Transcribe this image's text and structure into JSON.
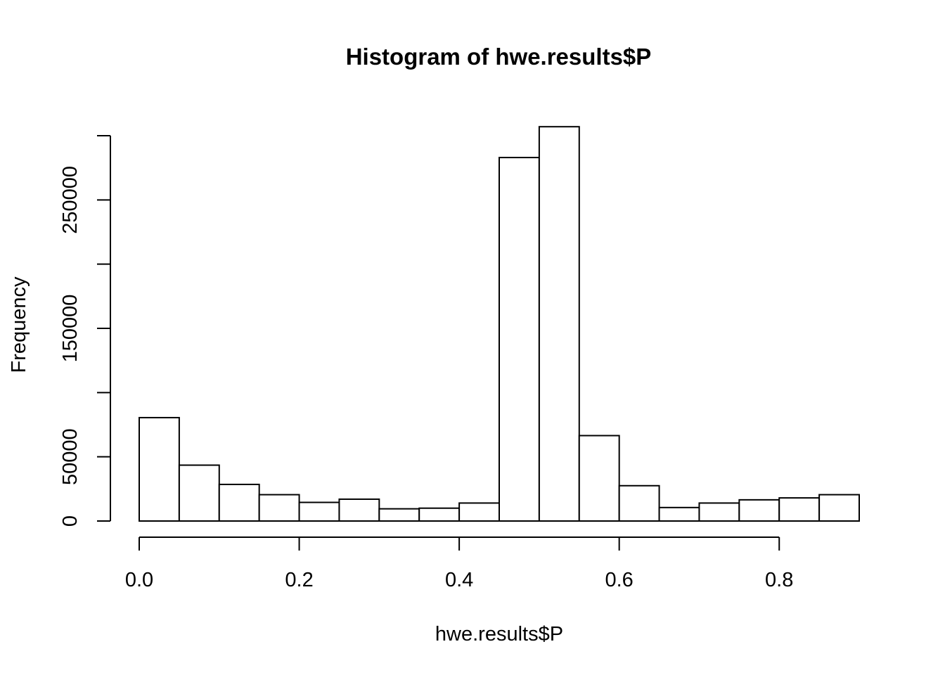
{
  "chart_data": {
    "type": "bar",
    "title": "Histogram of hwe.results$P",
    "xlabel": "hwe.results$P",
    "ylabel": "Frequency",
    "xlim": [
      0.0,
      0.9
    ],
    "ylim": [
      0,
      300000
    ],
    "x_ticks": [
      0.0,
      0.2,
      0.4,
      0.6,
      0.8
    ],
    "x_tick_labels": [
      "0.0",
      "0.2",
      "0.4",
      "0.6",
      "0.8"
    ],
    "y_ticks": [
      0,
      50000,
      100000,
      150000,
      200000,
      250000,
      300000
    ],
    "y_tick_labels": [
      "0",
      "50000",
      "",
      "150000",
      "",
      "250000",
      ""
    ],
    "bin_width": 0.05,
    "bins": [
      {
        "start": 0.0,
        "end": 0.05,
        "value": 80500
      },
      {
        "start": 0.05,
        "end": 0.1,
        "value": 43500
      },
      {
        "start": 0.1,
        "end": 0.15,
        "value": 28500
      },
      {
        "start": 0.15,
        "end": 0.2,
        "value": 20500
      },
      {
        "start": 0.2,
        "end": 0.25,
        "value": 14500
      },
      {
        "start": 0.25,
        "end": 0.3,
        "value": 17000
      },
      {
        "start": 0.3,
        "end": 0.35,
        "value": 9500
      },
      {
        "start": 0.35,
        "end": 0.4,
        "value": 10000
      },
      {
        "start": 0.4,
        "end": 0.45,
        "value": 14000
      },
      {
        "start": 0.45,
        "end": 0.5,
        "value": 283000
      },
      {
        "start": 0.5,
        "end": 0.55,
        "value": 307000
      },
      {
        "start": 0.55,
        "end": 0.6,
        "value": 66500
      },
      {
        "start": 0.6,
        "end": 0.65,
        "value": 27500
      },
      {
        "start": 0.65,
        "end": 0.7,
        "value": 10500
      },
      {
        "start": 0.7,
        "end": 0.75,
        "value": 14000
      },
      {
        "start": 0.75,
        "end": 0.8,
        "value": 16500
      },
      {
        "start": 0.8,
        "end": 0.85,
        "value": 18000
      },
      {
        "start": 0.85,
        "end": 0.9,
        "value": 20500
      }
    ],
    "grid": false,
    "legend": "none"
  }
}
